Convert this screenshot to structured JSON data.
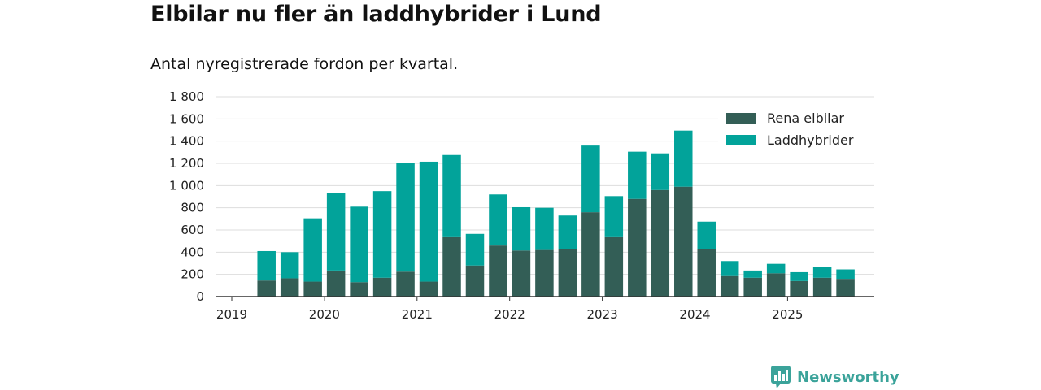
{
  "page": {
    "title": "Elbilar nu fler än laddhybrider i Lund",
    "subtitle": "Antal nyregistrerade fordon per kvartal.",
    "brand": "Newsworthy"
  },
  "colors": {
    "electric": "#335e56",
    "hybrid": "#02a39a",
    "grid": "#dddddd",
    "axis": "#333333",
    "brand": "#3ba39a"
  },
  "chart_data": {
    "type": "bar",
    "stacked": true,
    "title": "Elbilar nu fler än laddhybrider i Lund",
    "subtitle": "Antal nyregistrerade fordon per kvartal.",
    "xlabel": "",
    "ylabel": "",
    "ylim": [
      0,
      1800
    ],
    "y_ticks": [
      0,
      200,
      400,
      600,
      800,
      1000,
      1200,
      1400,
      1600,
      1800
    ],
    "y_tick_labels": [
      "0",
      "200",
      "400",
      "600",
      "800",
      "1 000",
      "1 200",
      "1 400",
      "1 600",
      "1 800"
    ],
    "x_ticks": [
      "2019",
      "2020",
      "2021",
      "2022",
      "2023",
      "2024",
      "2025"
    ],
    "grid": true,
    "legend_position": "top-right",
    "categories": [
      "2019 Q2",
      "2019 Q3",
      "2019 Q4",
      "2020 Q1",
      "2020 Q2",
      "2020 Q3",
      "2020 Q4",
      "2021 Q1",
      "2021 Q2",
      "2021 Q3",
      "2021 Q4",
      "2022 Q1",
      "2022 Q2",
      "2022 Q3",
      "2022 Q4",
      "2023 Q1",
      "2023 Q2",
      "2023 Q3",
      "2023 Q4",
      "2024 Q1",
      "2024 Q2",
      "2024 Q3",
      "2024 Q4",
      "2025 Q1",
      "2025 Q2",
      "2025 Q3"
    ],
    "series": [
      {
        "name": "Rena elbilar",
        "color": "#335e56",
        "values": [
          145,
          165,
          135,
          235,
          130,
          170,
          225,
          135,
          535,
          280,
          460,
          415,
          420,
          425,
          760,
          535,
          880,
          960,
          990,
          430,
          185,
          170,
          210,
          140,
          170,
          160
        ]
      },
      {
        "name": "Laddhybrider",
        "color": "#02a39a",
        "values": [
          265,
          235,
          570,
          695,
          680,
          780,
          975,
          1080,
          740,
          285,
          460,
          390,
          380,
          305,
          600,
          370,
          425,
          330,
          505,
          245,
          135,
          65,
          85,
          80,
          100,
          85
        ]
      }
    ]
  }
}
